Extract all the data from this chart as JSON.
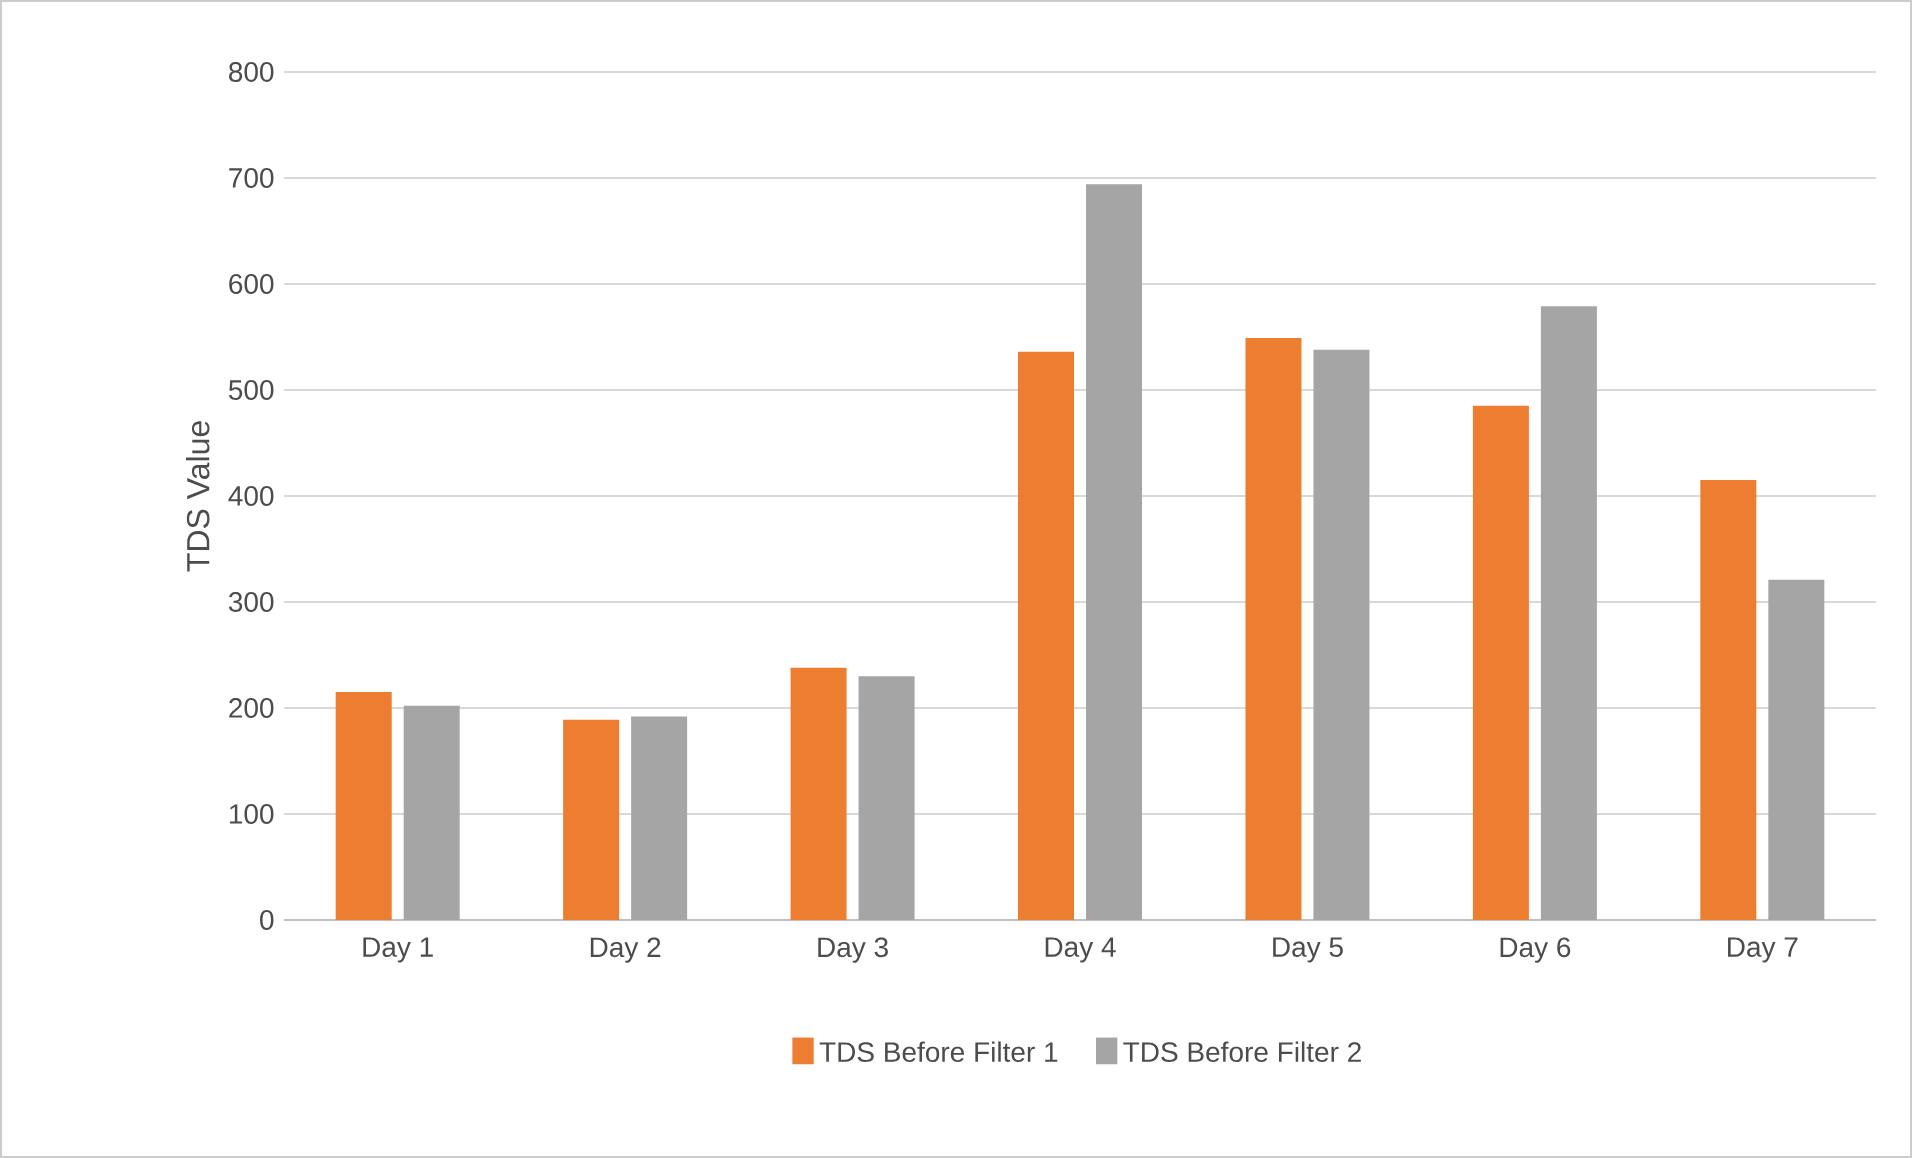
{
  "chart_data": {
    "type": "bar",
    "ylabel": "TDS Value",
    "categories": [
      "Day 1",
      "Day 2",
      "Day 3",
      "Day 4",
      "Day 5",
      "Day 6",
      "Day 7"
    ],
    "series": [
      {
        "name": "TDS Before Filter 1",
        "color": "#ed7d31",
        "values": [
          215,
          189,
          238,
          536,
          549,
          485,
          415
        ]
      },
      {
        "name": "TDS Before Filter 2",
        "color": "#a5a5a5",
        "values": [
          202,
          192,
          230,
          694,
          538,
          579,
          321
        ]
      }
    ],
    "ylim": [
      0,
      800
    ],
    "yticks": [
      0,
      100,
      200,
      300,
      400,
      500,
      600,
      700,
      800
    ],
    "grid": "y",
    "legend": "bottom"
  }
}
